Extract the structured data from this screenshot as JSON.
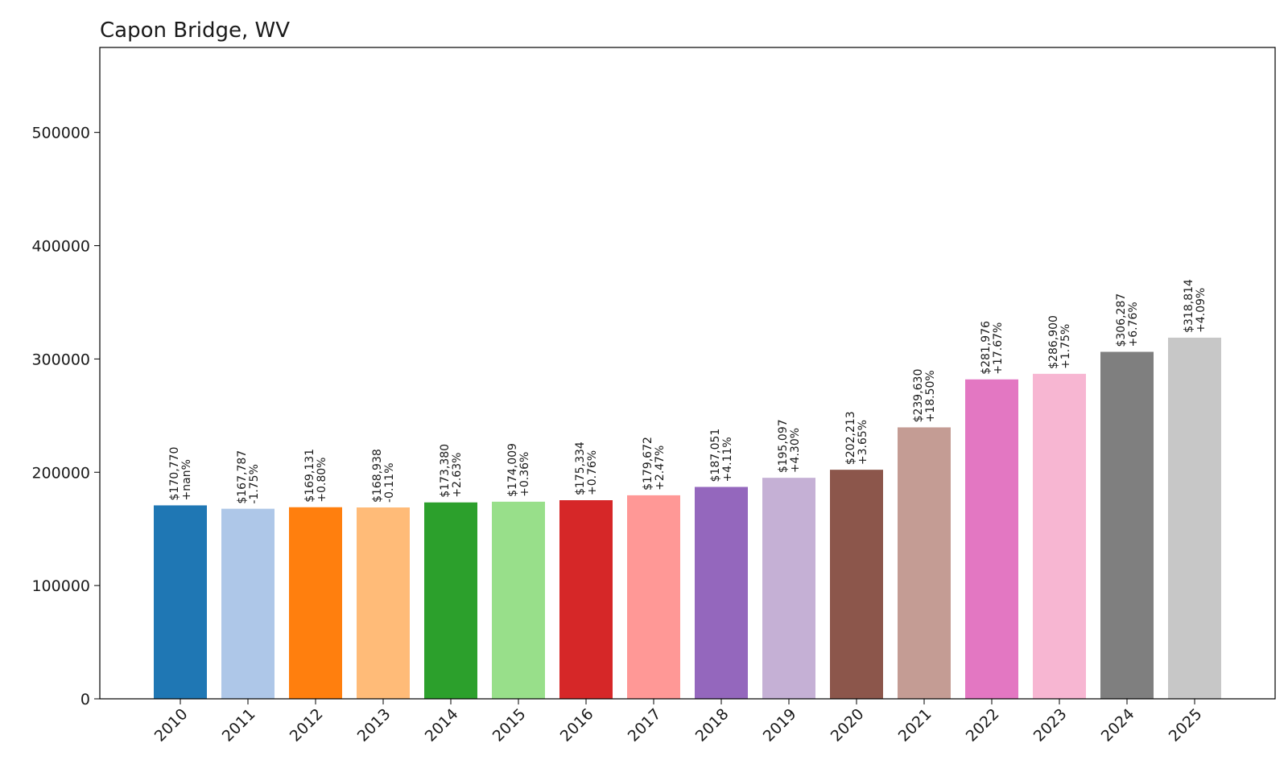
{
  "chart_data": {
    "type": "bar",
    "title": "Capon Bridge, WV",
    "xlabel": "",
    "ylabel": "",
    "ylim": [
      0,
      575000
    ],
    "yticks": [
      0,
      100000,
      200000,
      300000,
      400000,
      500000
    ],
    "ytick_labels": [
      "0",
      "100000",
      "200000",
      "300000",
      "400000",
      "500000"
    ],
    "grid": false,
    "categories": [
      "2010",
      "2011",
      "2012",
      "2013",
      "2014",
      "2015",
      "2016",
      "2017",
      "2018",
      "2019",
      "2020",
      "2021",
      "2022",
      "2023",
      "2024",
      "2025"
    ],
    "values": [
      170770,
      167787,
      169131,
      168938,
      173380,
      174009,
      175334,
      179672,
      187051,
      195097,
      202213,
      239630,
      281976,
      286900,
      306287,
      318814
    ],
    "value_labels": [
      "$170,770",
      "$167,787",
      "$169,131",
      "$168,938",
      "$173,380",
      "$174,009",
      "$175,334",
      "$179,672",
      "$187,051",
      "$195,097",
      "$202,213",
      "$239,630",
      "$281,976",
      "$286,900",
      "$306,287",
      "$318,814"
    ],
    "change_labels": [
      "+nan%",
      "-1.75%",
      "+0.80%",
      "-0.11%",
      "+2.63%",
      "+0.36%",
      "+0.76%",
      "+2.47%",
      "+4.11%",
      "+4.30%",
      "+3.65%",
      "+18.50%",
      "+17.67%",
      "+1.75%",
      "+6.76%",
      "+4.09%"
    ],
    "colors": [
      "#1f77b4",
      "#aec7e8",
      "#ff7f0e",
      "#ffbb78",
      "#2ca02c",
      "#98df8a",
      "#d62728",
      "#ff9896",
      "#9467bd",
      "#c5b0d5",
      "#8c564b",
      "#c49c94",
      "#e377c2",
      "#f7b6d2",
      "#7f7f7f",
      "#c7c7c7"
    ]
  }
}
